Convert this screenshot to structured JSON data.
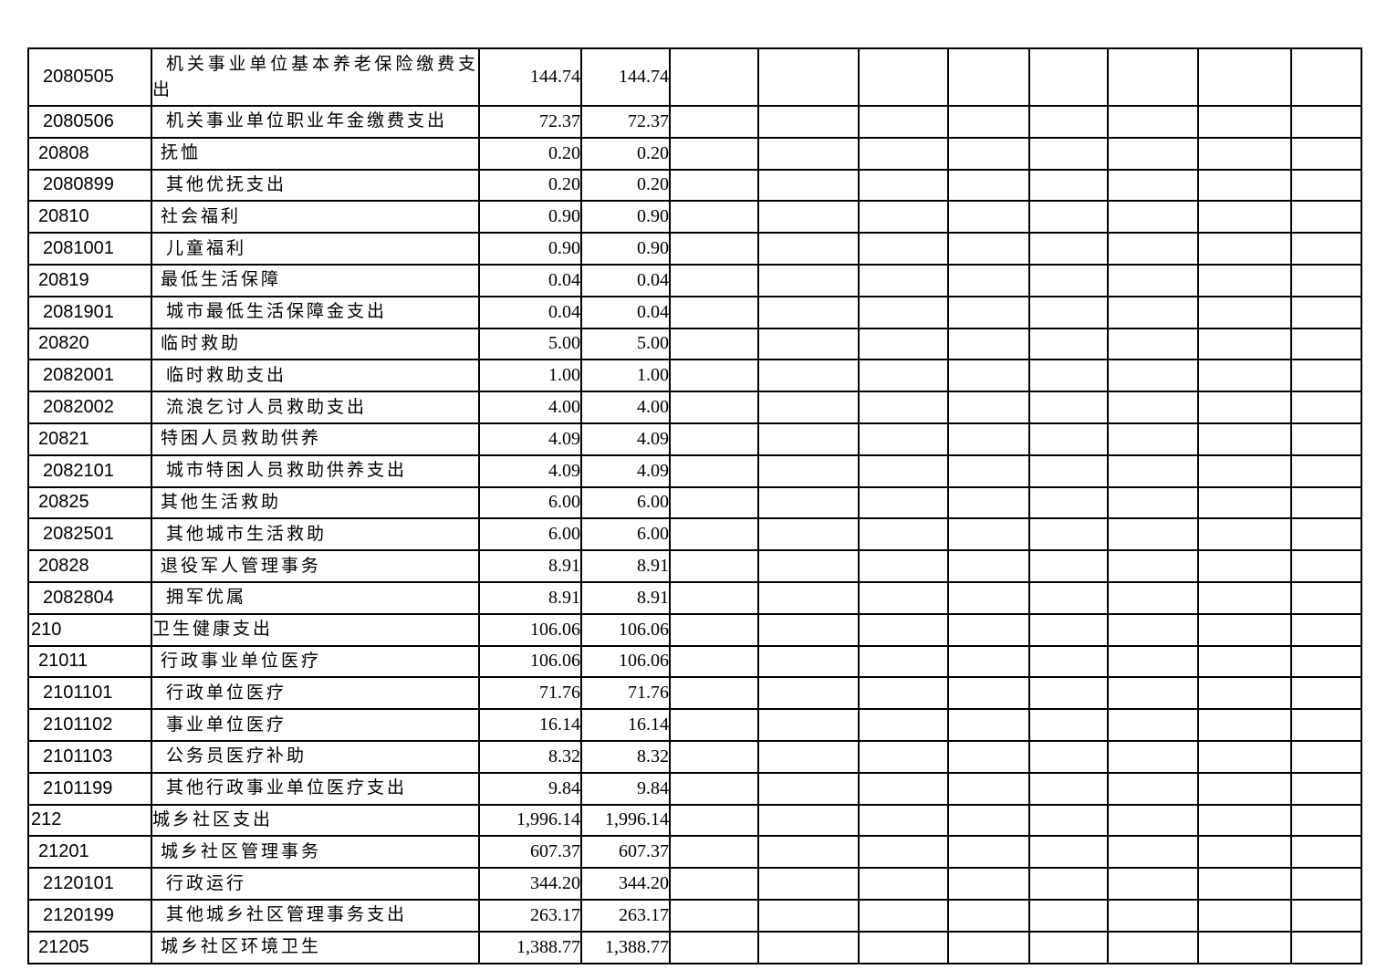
{
  "colors": {
    "background": "#ffffff",
    "grid_border": "#000000",
    "text": "#000000"
  },
  "table": {
    "empty_column_count": 8,
    "amount_column_count": 2,
    "rows": [
      {
        "code": "2080505",
        "level": 3,
        "name": "机关事业单位基本养老保险缴费支出",
        "amounts": [
          "144.74",
          "144.74"
        ]
      },
      {
        "code": "2080506",
        "level": 3,
        "name": "机关事业单位职业年金缴费支出",
        "amounts": [
          "72.37",
          "72.37"
        ]
      },
      {
        "code": "20808",
        "level": 2,
        "name": "抚恤",
        "amounts": [
          "0.20",
          "0.20"
        ]
      },
      {
        "code": "2080899",
        "level": 3,
        "name": "其他优抚支出",
        "amounts": [
          "0.20",
          "0.20"
        ]
      },
      {
        "code": "20810",
        "level": 2,
        "name": "社会福利",
        "amounts": [
          "0.90",
          "0.90"
        ]
      },
      {
        "code": "2081001",
        "level": 3,
        "name": "儿童福利",
        "amounts": [
          "0.90",
          "0.90"
        ]
      },
      {
        "code": "20819",
        "level": 2,
        "name": "最低生活保障",
        "amounts": [
          "0.04",
          "0.04"
        ]
      },
      {
        "code": "2081901",
        "level": 3,
        "name": "城市最低生活保障金支出",
        "amounts": [
          "0.04",
          "0.04"
        ]
      },
      {
        "code": "20820",
        "level": 2,
        "name": "临时救助",
        "amounts": [
          "5.00",
          "5.00"
        ]
      },
      {
        "code": "2082001",
        "level": 3,
        "name": "临时救助支出",
        "amounts": [
          "1.00",
          "1.00"
        ]
      },
      {
        "code": "2082002",
        "level": 3,
        "name": "流浪乞讨人员救助支出",
        "amounts": [
          "4.00",
          "4.00"
        ]
      },
      {
        "code": "20821",
        "level": 2,
        "name": "特困人员救助供养",
        "amounts": [
          "4.09",
          "4.09"
        ]
      },
      {
        "code": "2082101",
        "level": 3,
        "name": "城市特困人员救助供养支出",
        "amounts": [
          "4.09",
          "4.09"
        ]
      },
      {
        "code": "20825",
        "level": 2,
        "name": "其他生活救助",
        "amounts": [
          "6.00",
          "6.00"
        ]
      },
      {
        "code": "2082501",
        "level": 3,
        "name": "其他城市生活救助",
        "amounts": [
          "6.00",
          "6.00"
        ]
      },
      {
        "code": "20828",
        "level": 2,
        "name": "退役军人管理事务",
        "amounts": [
          "8.91",
          "8.91"
        ]
      },
      {
        "code": "2082804",
        "level": 3,
        "name": "拥军优属",
        "amounts": [
          "8.91",
          "8.91"
        ]
      },
      {
        "code": "210",
        "level": 1,
        "name": "卫生健康支出",
        "amounts": [
          "106.06",
          "106.06"
        ]
      },
      {
        "code": "21011",
        "level": 2,
        "name": "行政事业单位医疗",
        "amounts": [
          "106.06",
          "106.06"
        ]
      },
      {
        "code": "2101101",
        "level": 3,
        "name": "行政单位医疗",
        "amounts": [
          "71.76",
          "71.76"
        ]
      },
      {
        "code": "2101102",
        "level": 3,
        "name": "事业单位医疗",
        "amounts": [
          "16.14",
          "16.14"
        ]
      },
      {
        "code": "2101103",
        "level": 3,
        "name": "公务员医疗补助",
        "amounts": [
          "8.32",
          "8.32"
        ]
      },
      {
        "code": "2101199",
        "level": 3,
        "name": "其他行政事业单位医疗支出",
        "amounts": [
          "9.84",
          "9.84"
        ]
      },
      {
        "code": "212",
        "level": 1,
        "name": "城乡社区支出",
        "amounts": [
          "1,996.14",
          "1,996.14"
        ]
      },
      {
        "code": "21201",
        "level": 2,
        "name": "城乡社区管理事务",
        "amounts": [
          "607.37",
          "607.37"
        ]
      },
      {
        "code": "2120101",
        "level": 3,
        "name": "行政运行",
        "amounts": [
          "344.20",
          "344.20"
        ]
      },
      {
        "code": "2120199",
        "level": 3,
        "name": "其他城乡社区管理事务支出",
        "amounts": [
          "263.17",
          "263.17"
        ]
      },
      {
        "code": "21205",
        "level": 2,
        "name": "城乡社区环境卫生",
        "amounts": [
          "1,388.77",
          "1,388.77"
        ]
      }
    ]
  }
}
